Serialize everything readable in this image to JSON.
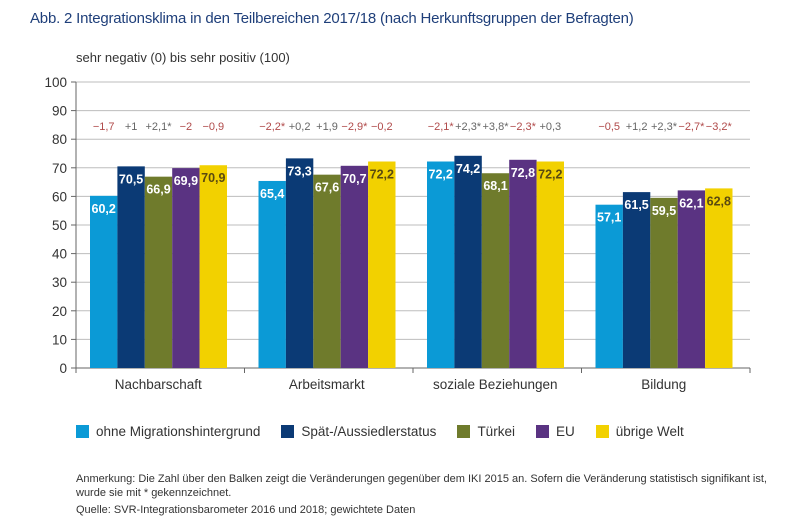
{
  "title": "Abb. 2 Integrationsklima in den Teilbereichen 2017/18 (nach Herkunftsgruppen der Befragten)",
  "chart_data": {
    "type": "bar",
    "title": "Abb. 2 Integrationsklima in den Teilbereichen 2017/18 (nach Herkunftsgruppen der Befragten)",
    "ylabel": "sehr negativ (0) bis sehr positiv (100)",
    "xlabel": "",
    "ylim": [
      0,
      100
    ],
    "yticks": [
      0,
      10,
      20,
      30,
      40,
      50,
      60,
      70,
      80,
      90,
      100
    ],
    "grid": true,
    "legend_position": "bottom",
    "categories": [
      "Nachbarschaft",
      "Arbeitsmarkt",
      "soziale Beziehungen",
      "Bildung"
    ],
    "series": [
      {
        "name": "ohne Migrationshintergrund",
        "color": "#0b9ad6",
        "label_color": "#ffffff",
        "values": [
          60.2,
          65.4,
          72.2,
          57.1
        ],
        "value_labels": [
          "60,2",
          "65,4",
          "72,2",
          "57,1"
        ],
        "changes": [
          "−1,7",
          "−2,2*",
          "−2,1*",
          "−0,5"
        ]
      },
      {
        "name": "Spät-/Aussiedlerstatus",
        "color": "#0b3a75",
        "label_color": "#ffffff",
        "values": [
          70.5,
          73.3,
          74.2,
          61.5
        ],
        "value_labels": [
          "70,5",
          "73,3",
          "74,2",
          "61,5"
        ],
        "changes": [
          "+1",
          "+0,2",
          "+2,3*",
          "+1,2"
        ]
      },
      {
        "name": "Türkei",
        "color": "#6f7b2c",
        "label_color": "#ffffff",
        "values": [
          66.9,
          67.6,
          68.1,
          59.5
        ],
        "value_labels": [
          "66,9",
          "67,6",
          "68,1",
          "59,5"
        ],
        "changes": [
          "+2,1*",
          "+1,9",
          "+3,8*",
          "+2,3*"
        ]
      },
      {
        "name": "EU",
        "color": "#5a3382",
        "label_color": "#ffffff",
        "values": [
          69.9,
          70.7,
          72.8,
          62.1
        ],
        "value_labels": [
          "69,9",
          "70,7",
          "72,8",
          "62,1"
        ],
        "changes": [
          "−2",
          "−2,9*",
          "−2,3*",
          "−2,7*"
        ]
      },
      {
        "name": "übrige Welt",
        "color": "#f2d100",
        "label_color": "#5a4a10",
        "values": [
          70.9,
          72.2,
          72.2,
          62.8
        ],
        "value_labels": [
          "70,9",
          "72,2",
          "72,2",
          "62,8"
        ],
        "changes": [
          "−0,9",
          "−0,2",
          "+0,3",
          "−3,2*"
        ]
      }
    ],
    "change_colors": {
      "negative": "#b04a4a",
      "positive": "#666666"
    },
    "annotations": [
      "Anmerkung: Die Zahl über den Balken zeigt die Veränderungen gegenüber dem IKI 2015 an. Sofern die Veränderung statistisch signifikant ist, wurde sie mit * gekennzeichnet."
    ]
  },
  "scale_label": "sehr negativ (0) bis sehr positiv (100)",
  "notes": {
    "line1": "Anmerkung: Die Zahl über den Balken zeigt die Veränderungen gegenüber dem IKI 2015 an. Sofern die Veränderung statistisch signifikant ist,",
    "line2": "wurde sie mit * gekennzeichnet.",
    "source": "Quelle: SVR-Integrationsbarometer 2016 und 2018; gewichtete Daten"
  }
}
